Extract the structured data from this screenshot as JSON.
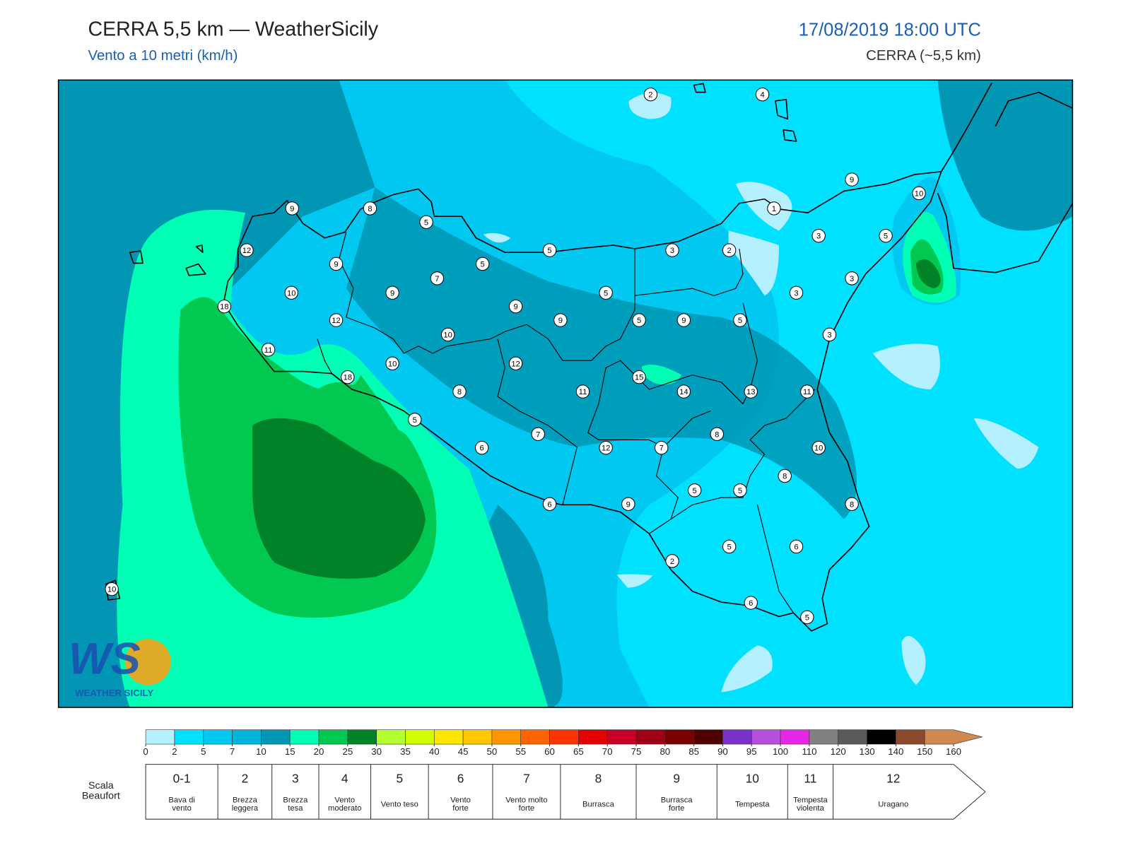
{
  "header": {
    "title": "CERRA 5,5 km — WeatherSicily",
    "subtitle": "Vento a 10 metri (km/h)",
    "datetime": "17/08/2019 18:00 UTC",
    "model": "CERRA (~5,5 km)"
  },
  "stations": [
    2,
    4,
    9,
    10,
    1,
    9,
    8,
    5,
    3,
    5,
    12,
    5,
    3,
    2,
    9,
    5,
    7,
    3,
    10,
    9,
    5,
    3,
    18,
    9,
    12,
    9,
    5,
    9,
    5,
    3,
    10,
    11,
    10,
    12,
    18,
    15,
    8,
    11,
    14,
    13,
    11,
    5,
    7,
    8,
    6,
    12,
    7,
    10,
    8,
    5,
    5,
    6,
    9,
    8,
    5,
    6,
    2,
    10,
    6,
    5
  ],
  "logo": {
    "mark": "WS",
    "name": "WEATHER SICILY"
  },
  "colorbar": {
    "ticks": [
      0,
      2,
      5,
      7,
      10,
      15,
      20,
      25,
      30,
      35,
      40,
      45,
      50,
      55,
      60,
      65,
      70,
      75,
      80,
      85,
      90,
      95,
      100,
      110,
      120,
      130,
      140,
      150,
      160
    ],
    "colors": [
      "#b4f0ff",
      "#00e0ff",
      "#00c8f0",
      "#00b4dc",
      "#0096b4",
      "#00ffb4",
      "#00c850",
      "#008228",
      "#b4ff32",
      "#d2ff00",
      "#ffe600",
      "#ffc800",
      "#ff9600",
      "#ff6400",
      "#ff3200",
      "#e60000",
      "#c80028",
      "#a00014",
      "#780000",
      "#500000",
      "#7832c8",
      "#b450dc",
      "#e628e6",
      "#808080",
      "#5a5a5a",
      "#000000",
      "#8b4a2b",
      "#d08a50"
    ]
  },
  "beaufort": {
    "label": [
      "Scala",
      "Beaufort"
    ],
    "levels": [
      {
        "force": "0-1",
        "desc": [
          "Bava di",
          "vento"
        ]
      },
      {
        "force": "2",
        "desc": [
          "Brezza",
          "leggera"
        ]
      },
      {
        "force": "3",
        "desc": [
          "Brezza",
          "tesa"
        ]
      },
      {
        "force": "4",
        "desc": [
          "Vento",
          "moderato"
        ]
      },
      {
        "force": "5",
        "desc": [
          "Vento teso"
        ]
      },
      {
        "force": "6",
        "desc": [
          "Vento",
          "forte"
        ]
      },
      {
        "force": "7",
        "desc": [
          "Vento molto",
          "forte"
        ]
      },
      {
        "force": "8",
        "desc": [
          "Burrasca"
        ]
      },
      {
        "force": "9",
        "desc": [
          "Burrasca",
          "forte"
        ]
      },
      {
        "force": "10",
        "desc": [
          "Tempesta"
        ]
      },
      {
        "force": "11",
        "desc": [
          "Tempesta",
          "violenta"
        ]
      },
      {
        "force": "12",
        "desc": [
          "Uragano"
        ]
      }
    ]
  }
}
